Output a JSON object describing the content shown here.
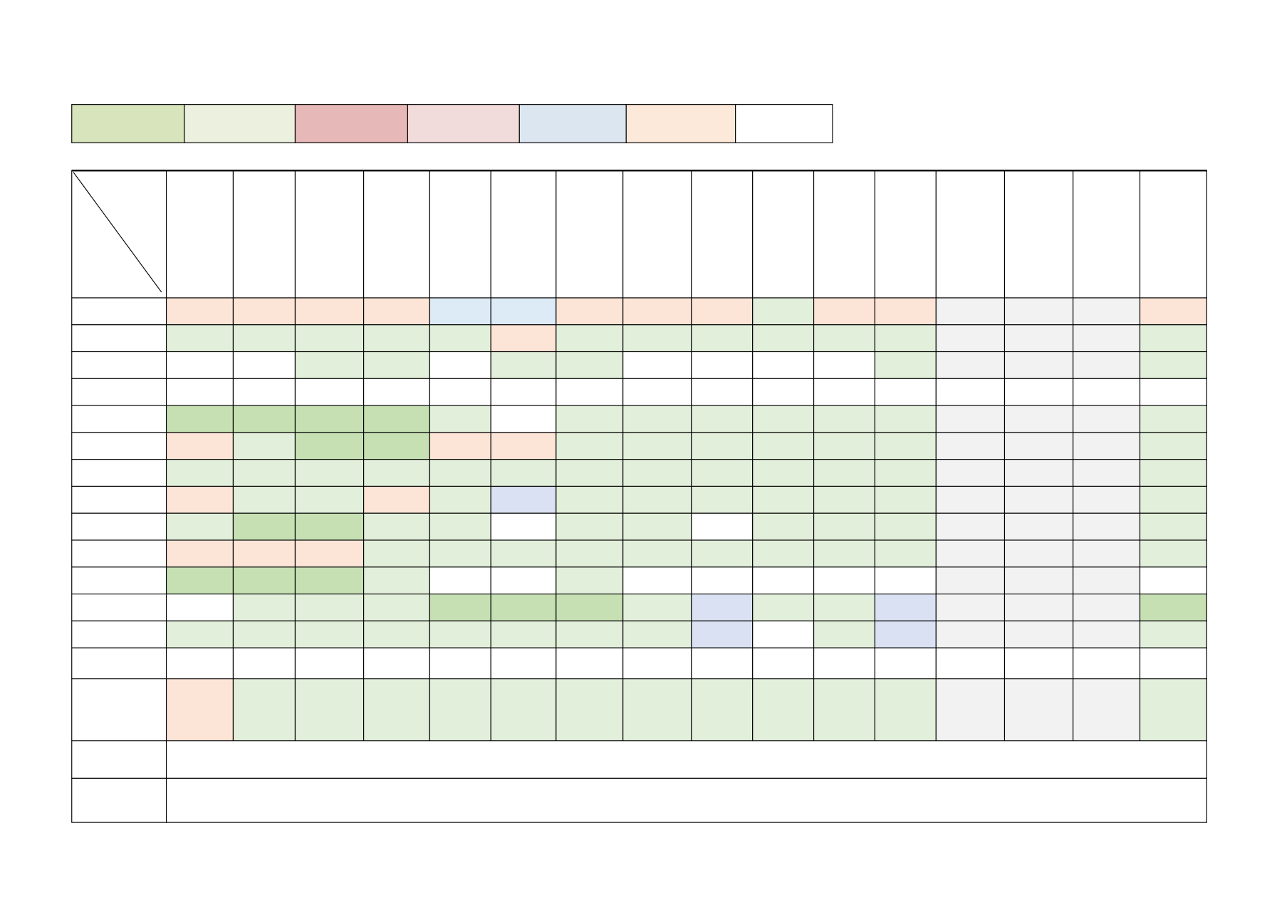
{
  "legend": {
    "colors": [
      "#d8e4bc",
      "#ebf1de",
      "#e6b8b7",
      "#f2dcdb",
      "#dce6f1",
      "#fde9d9",
      "#ffffff"
    ]
  },
  "table": {
    "cell_colors": [
      [
        "#fce4d6",
        "#fce4d6",
        "#fce4d6",
        "#fce4d6",
        "#ddebf7",
        "#ddebf7",
        "#fce4d6",
        "#fce4d6",
        "#fce4d6",
        "#e2efda",
        "#fce4d6",
        "#fce4d6",
        "#f2f2f2",
        "#f2f2f2",
        "#f2f2f2",
        "#fce4d6"
      ],
      [
        "#e2efda",
        "#e2efda",
        "#e2efda",
        "#e2efda",
        "#e2efda",
        "#fce4d6",
        "#e2efda",
        "#e2efda",
        "#e2efda",
        "#e2efda",
        "#e2efda",
        "#e2efda",
        "#f2f2f2",
        "#f2f2f2",
        "#f2f2f2",
        "#e2efda"
      ],
      [
        "#ffffff",
        "#ffffff",
        "#e2efda",
        "#e2efda",
        "#ffffff",
        "#e2efda",
        "#e2efda",
        "#ffffff",
        "#ffffff",
        "#ffffff",
        "#ffffff",
        "#e2efda",
        "#f2f2f2",
        "#f2f2f2",
        "#f2f2f2",
        "#e2efda"
      ],
      [
        "#ffffff",
        "#ffffff",
        "#ffffff",
        "#ffffff",
        "#ffffff",
        "#ffffff",
        "#ffffff",
        "#ffffff",
        "#ffffff",
        "#ffffff",
        "#ffffff",
        "#ffffff",
        "#ffffff",
        "#ffffff",
        "#ffffff",
        "#ffffff"
      ],
      [
        "#c6e0b4",
        "#c6e0b4",
        "#c6e0b4",
        "#c6e0b4",
        "#e2efda",
        "#ffffff",
        "#e2efda",
        "#e2efda",
        "#e2efda",
        "#e2efda",
        "#e2efda",
        "#e2efda",
        "#f2f2f2",
        "#f2f2f2",
        "#f2f2f2",
        "#e2efda"
      ],
      [
        "#fce4d6",
        "#e2efda",
        "#c6e0b4",
        "#c6e0b4",
        "#fce4d6",
        "#fce4d6",
        "#e2efda",
        "#e2efda",
        "#e2efda",
        "#e2efda",
        "#e2efda",
        "#e2efda",
        "#f2f2f2",
        "#f2f2f2",
        "#f2f2f2",
        "#e2efda"
      ],
      [
        "#e2efda",
        "#e2efda",
        "#e2efda",
        "#e2efda",
        "#e2efda",
        "#e2efda",
        "#e2efda",
        "#e2efda",
        "#e2efda",
        "#e2efda",
        "#e2efda",
        "#e2efda",
        "#f2f2f2",
        "#f2f2f2",
        "#f2f2f2",
        "#e2efda"
      ],
      [
        "#fce4d6",
        "#e2efda",
        "#e2efda",
        "#fce4d6",
        "#e2efda",
        "#d9e1f2",
        "#e2efda",
        "#e2efda",
        "#e2efda",
        "#e2efda",
        "#e2efda",
        "#e2efda",
        "#f2f2f2",
        "#f2f2f2",
        "#f2f2f2",
        "#e2efda"
      ],
      [
        "#e2efda",
        "#c6e0b4",
        "#c6e0b4",
        "#e2efda",
        "#e2efda",
        "#ffffff",
        "#e2efda",
        "#e2efda",
        "#ffffff",
        "#e2efda",
        "#e2efda",
        "#e2efda",
        "#f2f2f2",
        "#f2f2f2",
        "#f2f2f2",
        "#e2efda"
      ],
      [
        "#fce4d6",
        "#fce4d6",
        "#fce4d6",
        "#e2efda",
        "#e2efda",
        "#e2efda",
        "#e2efda",
        "#e2efda",
        "#e2efda",
        "#e2efda",
        "#e2efda",
        "#e2efda",
        "#f2f2f2",
        "#f2f2f2",
        "#f2f2f2",
        "#e2efda"
      ],
      [
        "#c6e0b4",
        "#c6e0b4",
        "#c6e0b4",
        "#e2efda",
        "#ffffff",
        "#ffffff",
        "#e2efda",
        "#ffffff",
        "#ffffff",
        "#ffffff",
        "#ffffff",
        "#ffffff",
        "#f2f2f2",
        "#f2f2f2",
        "#f2f2f2",
        "#ffffff"
      ],
      [
        "#ffffff",
        "#e2efda",
        "#e2efda",
        "#e2efda",
        "#c6e0b4",
        "#c6e0b4",
        "#c6e0b4",
        "#e2efda",
        "#d9e1f2",
        "#e2efda",
        "#e2efda",
        "#d9e1f2",
        "#f2f2f2",
        "#f2f2f2",
        "#f2f2f2",
        "#c6e0b4"
      ],
      [
        "#e2efda",
        "#e2efda",
        "#e2efda",
        "#e2efda",
        "#e2efda",
        "#e2efda",
        "#e2efda",
        "#e2efda",
        "#d9e1f2",
        "#ffffff",
        "#e2efda",
        "#d9e1f2",
        "#f2f2f2",
        "#f2f2f2",
        "#f2f2f2",
        "#e2efda"
      ],
      [
        "#ffffff",
        "#ffffff",
        "#ffffff",
        "#ffffff",
        "#ffffff",
        "#ffffff",
        "#ffffff",
        "#ffffff",
        "#ffffff",
        "#ffffff",
        "#ffffff",
        "#ffffff",
        "#ffffff",
        "#ffffff",
        "#ffffff",
        "#ffffff"
      ],
      [
        "#fce4d6",
        "#e2efda",
        "#e2efda",
        "#e2efda",
        "#e2efda",
        "#e2efda",
        "#e2efda",
        "#e2efda",
        "#e2efda",
        "#e2efda",
        "#e2efda",
        "#e2efda",
        "#f2f2f2",
        "#f2f2f2",
        "#f2f2f2",
        "#e2efda"
      ]
    ]
  }
}
